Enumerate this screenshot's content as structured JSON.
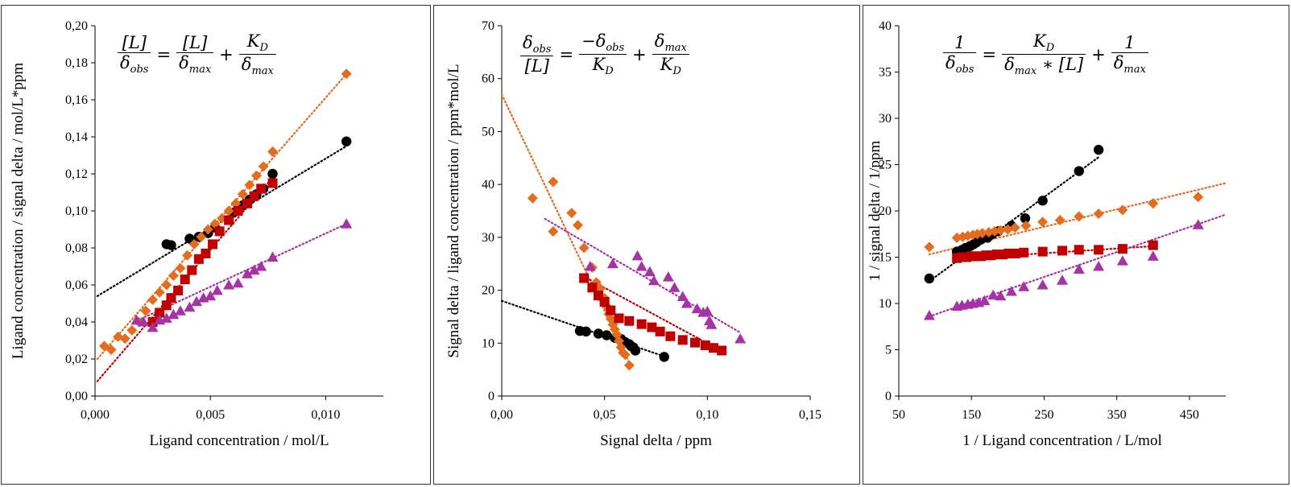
{
  "chart_data": [
    {
      "type": "scatter",
      "equation": {
        "lhs_num": "[L]",
        "lhs_den": "δ",
        "lhs_den_sub": "obs",
        "t1_num": "[L]",
        "t1_den": "δ",
        "t1_den_sub": "max",
        "t2_num": "K",
        "t2_num_sub": "D",
        "t2_den": "δ",
        "t2_den_sub": "max"
      },
      "xlabel": "Ligand concentration / mol/L",
      "ylabel": "Ligand concentration / signal delta / mol/L*ppm",
      "xlim": [
        0,
        0.0125
      ],
      "ylim": [
        0,
        0.2
      ],
      "xticks": [
        0,
        0.005,
        0.01
      ],
      "xtick_labels": [
        "0,000",
        "0,005",
        "0,010"
      ],
      "yticks": [
        0,
        0.02,
        0.04,
        0.06,
        0.08,
        0.1,
        0.12,
        0.14,
        0.16,
        0.18,
        0.2
      ],
      "ytick_labels": [
        "0,00",
        "0,02",
        "0,04",
        "0,06",
        "0,08",
        "0,10",
        "0,12",
        "0,14",
        "0,16",
        "0,18",
        "0,20"
      ],
      "series": [
        {
          "marker": "circle",
          "color": "#000000",
          "x": [
            0.0031,
            0.0033,
            0.0041,
            0.0045,
            0.0049,
            0.0052,
            0.006,
            0.0064,
            0.0067,
            0.007,
            0.0073,
            0.0077,
            0.0109
          ],
          "y": [
            0.082,
            0.0815,
            0.085,
            0.086,
            0.088,
            0.091,
            0.099,
            0.103,
            0.106,
            0.109,
            0.112,
            0.12,
            0.1375
          ],
          "trend": [
            [
              0.0001,
              0.054
            ],
            [
              0.0109,
              0.135
            ]
          ]
        },
        {
          "marker": "diamond",
          "color": "#E46C1E",
          "x": [
            0.0004,
            0.0007,
            0.001,
            0.0013,
            0.0016,
            0.0019,
            0.0022,
            0.0025,
            0.0028,
            0.0031,
            0.0034,
            0.0037,
            0.004,
            0.0043,
            0.0046,
            0.0049,
            0.0052,
            0.0055,
            0.0058,
            0.0061,
            0.0064,
            0.0067,
            0.007,
            0.0073,
            0.0077,
            0.0109
          ],
          "y": [
            0.027,
            0.025,
            0.032,
            0.031,
            0.0355,
            0.04,
            0.046,
            0.052,
            0.056,
            0.06,
            0.065,
            0.069,
            0.076,
            0.082,
            0.086,
            0.09,
            0.093,
            0.096,
            0.1,
            0.104,
            0.109,
            0.114,
            0.119,
            0.124,
            0.132,
            0.174
          ],
          "trend": [
            [
              0.0001,
              0.02
            ],
            [
              0.0109,
              0.174
            ]
          ]
        },
        {
          "marker": "square",
          "color": "#C00000",
          "x": [
            0.0025,
            0.0028,
            0.0031,
            0.0033,
            0.0036,
            0.0039,
            0.0042,
            0.0045,
            0.0048,
            0.0051,
            0.0054,
            0.0058,
            0.0062,
            0.0066,
            0.0069,
            0.0072,
            0.0077
          ],
          "y": [
            0.04,
            0.045,
            0.049,
            0.053,
            0.057,
            0.063,
            0.068,
            0.074,
            0.077,
            0.082,
            0.089,
            0.095,
            0.1,
            0.104,
            0.108,
            0.112,
            0.115
          ],
          "trend": [
            [
              0.0001,
              0.008
            ],
            [
              0.0077,
              0.118
            ]
          ]
        },
        {
          "marker": "triangle",
          "color": "#A633A6",
          "x": [
            0.0018,
            0.0021,
            0.0025,
            0.0028,
            0.0031,
            0.0034,
            0.0037,
            0.0041,
            0.0044,
            0.0047,
            0.005,
            0.0053,
            0.0058,
            0.0062,
            0.0066,
            0.0069,
            0.0072,
            0.0077,
            0.0109
          ],
          "y": [
            0.041,
            0.04,
            0.037,
            0.041,
            0.042,
            0.044,
            0.046,
            0.048,
            0.051,
            0.053,
            0.054,
            0.057,
            0.06,
            0.061,
            0.066,
            0.068,
            0.07,
            0.075,
            0.093
          ],
          "trend": [
            [
              0.0017,
              0.04
            ],
            [
              0.0109,
              0.093
            ]
          ]
        }
      ]
    },
    {
      "type": "scatter",
      "equation": {
        "lhs_num": "δ",
        "lhs_num_sub": "obs",
        "lhs_den": "[L]",
        "t1_num": "−δ",
        "t1_num_sub": "obs",
        "t1_den": "K",
        "t1_den_sub": "D",
        "t2_num": "δ",
        "t2_num_sub": "max",
        "t2_den": "K",
        "t2_den_sub": "D"
      },
      "xlabel": "Signal delta / ppm",
      "ylabel": "Signal delta / ligand concentration / ppm*mol/L",
      "xlim": [
        0,
        0.15
      ],
      "ylim": [
        0,
        70
      ],
      "xticks": [
        0,
        0.05,
        0.1,
        0.15
      ],
      "xtick_labels": [
        "0,00",
        "0,05",
        "0,10",
        "0,15"
      ],
      "yticks": [
        0,
        10,
        20,
        30,
        40,
        50,
        60,
        70
      ],
      "ytick_labels": [
        "0",
        "10",
        "20",
        "30",
        "40",
        "50",
        "60",
        "70"
      ],
      "series": [
        {
          "marker": "circle",
          "color": "#000000",
          "x": [
            0.038,
            0.041,
            0.047,
            0.051,
            0.055,
            0.058,
            0.06,
            0.062,
            0.063,
            0.064,
            0.065,
            0.079
          ],
          "y": [
            12.3,
            12.2,
            11.8,
            11.5,
            11.0,
            10.8,
            10.2,
            9.8,
            9.4,
            9.2,
            8.6,
            7.4
          ],
          "trend": [
            [
              0.0,
              18.0
            ],
            [
              0.079,
              7.5
            ]
          ]
        },
        {
          "marker": "diamond",
          "color": "#E46C1E",
          "x": [
            0.015,
            0.025,
            0.025,
            0.034,
            0.037,
            0.04,
            0.044,
            0.046,
            0.048,
            0.05,
            0.051,
            0.052,
            0.053,
            0.054,
            0.055,
            0.056,
            0.057,
            0.058,
            0.059,
            0.06,
            0.062
          ],
          "y": [
            37.4,
            40.5,
            31.1,
            34.6,
            32.3,
            28.0,
            24.3,
            21.5,
            20.3,
            18.5,
            17.0,
            15.5,
            14.6,
            13.5,
            12.6,
            11.6,
            10.4,
            9.2,
            8.2,
            7.8,
            5.8
          ],
          "trend": [
            [
              0.0,
              57.0
            ],
            [
              0.062,
              6.3
            ]
          ]
        },
        {
          "marker": "square",
          "color": "#C00000",
          "x": [
            0.04,
            0.044,
            0.047,
            0.05,
            0.053,
            0.057,
            0.062,
            0.068,
            0.073,
            0.077,
            0.082,
            0.088,
            0.094,
            0.099,
            0.103,
            0.107
          ],
          "y": [
            22.3,
            20.5,
            19.0,
            17.8,
            16.2,
            14.7,
            14.2,
            13.6,
            13.0,
            12.2,
            11.3,
            10.6,
            10.1,
            9.6,
            9.1,
            8.6
          ],
          "trend": [
            [
              0.038,
              23.0
            ],
            [
              0.107,
              8.5
            ]
          ]
        },
        {
          "marker": "triangle",
          "color": "#A633A6",
          "x": [
            0.043,
            0.054,
            0.066,
            0.068,
            0.072,
            0.074,
            0.081,
            0.084,
            0.088,
            0.09,
            0.095,
            0.098,
            0.1,
            0.101,
            0.102,
            0.116
          ],
          "y": [
            24.5,
            25.0,
            26.5,
            24.5,
            23.5,
            21.8,
            22.5,
            20.5,
            18.8,
            17.5,
            16.5,
            15.8,
            16.0,
            14.2,
            13.5,
            10.8
          ],
          "trend": [
            [
              0.021,
              33.5
            ],
            [
              0.116,
              12.0
            ]
          ]
        }
      ]
    },
    {
      "type": "scatter",
      "equation": {
        "lhs_num": "1",
        "lhs_den": "δ",
        "lhs_den_sub": "obs",
        "t1_num": "K",
        "t1_num_sub": "D",
        "t1_den": "δ",
        "t1_den_sub": "max",
        "t1_den_tail": " ∗ [L]",
        "t2_num": "1",
        "t2_den": "δ",
        "t2_den_sub": "max"
      },
      "xlabel": "1 / Ligand concentration / L/mol",
      "ylabel": "1 / signal delta / 1/ppm",
      "xlim": [
        50,
        500
      ],
      "ylim": [
        0,
        40
      ],
      "xticks": [
        50,
        150,
        250,
        350,
        450
      ],
      "xtick_labels": [
        "50",
        "150",
        "250",
        "350",
        "450"
      ],
      "yticks": [
        0,
        5,
        10,
        15,
        20,
        25,
        30,
        35,
        40
      ],
      "ytick_labels": [
        "0",
        "5",
        "10",
        "15",
        "20",
        "25",
        "30",
        "35",
        "40"
      ],
      "series": [
        {
          "marker": "circle",
          "color": "#000000",
          "x": [
            92,
            130,
            137,
            142,
            148,
            153,
            157,
            163,
            172,
            179,
            187,
            205,
            224,
            248,
            298,
            325
          ],
          "y": [
            12.7,
            15.6,
            15.8,
            16.0,
            16.2,
            16.4,
            16.6,
            16.9,
            17.1,
            17.5,
            17.8,
            18.4,
            19.2,
            21.1,
            24.3,
            26.6
          ],
          "trend": [
            [
              92,
              12.4
            ],
            [
              325,
              25.8
            ]
          ]
        },
        {
          "marker": "diamond",
          "color": "#E46C1E",
          "x": [
            92,
            130,
            138,
            145,
            152,
            158,
            165,
            174,
            182,
            190,
            200,
            210,
            225,
            248,
            272,
            298,
            325,
            358,
            400,
            462
          ],
          "y": [
            16.1,
            17.1,
            17.2,
            17.3,
            17.4,
            17.5,
            17.6,
            17.7,
            17.8,
            17.9,
            18.0,
            18.2,
            18.4,
            18.8,
            19.0,
            19.4,
            19.7,
            20.1,
            20.8,
            21.5
          ],
          "trend": [
            [
              92,
              15.3
            ],
            [
              500,
              23.0
            ]
          ]
        },
        {
          "marker": "square",
          "color": "#C00000",
          "x": [
            130,
            137,
            143,
            150,
            156,
            163,
            170,
            177,
            185,
            193,
            201,
            211,
            222,
            248,
            275,
            298,
            325,
            358,
            400
          ],
          "y": [
            14.9,
            15.0,
            15.0,
            15.1,
            15.1,
            15.1,
            15.2,
            15.2,
            15.3,
            15.3,
            15.4,
            15.4,
            15.5,
            15.6,
            15.7,
            15.8,
            15.8,
            15.9,
            16.3
          ],
          "trend": [
            [
              128,
              14.8
            ],
            [
              402,
              16.2
            ]
          ]
        },
        {
          "marker": "triangle",
          "color": "#A633A6",
          "x": [
            92,
            130,
            137,
            145,
            152,
            160,
            168,
            180,
            190,
            205,
            222,
            248,
            275,
            298,
            325,
            358,
            400,
            462
          ],
          "y": [
            8.7,
            9.7,
            9.8,
            9.9,
            10.0,
            10.1,
            10.3,
            10.9,
            10.8,
            11.3,
            11.8,
            12.0,
            12.5,
            13.7,
            14.0,
            14.6,
            15.1,
            18.5
          ],
          "trend": [
            [
              92,
              8.6
            ],
            [
              500,
              19.6
            ]
          ]
        }
      ]
    }
  ]
}
